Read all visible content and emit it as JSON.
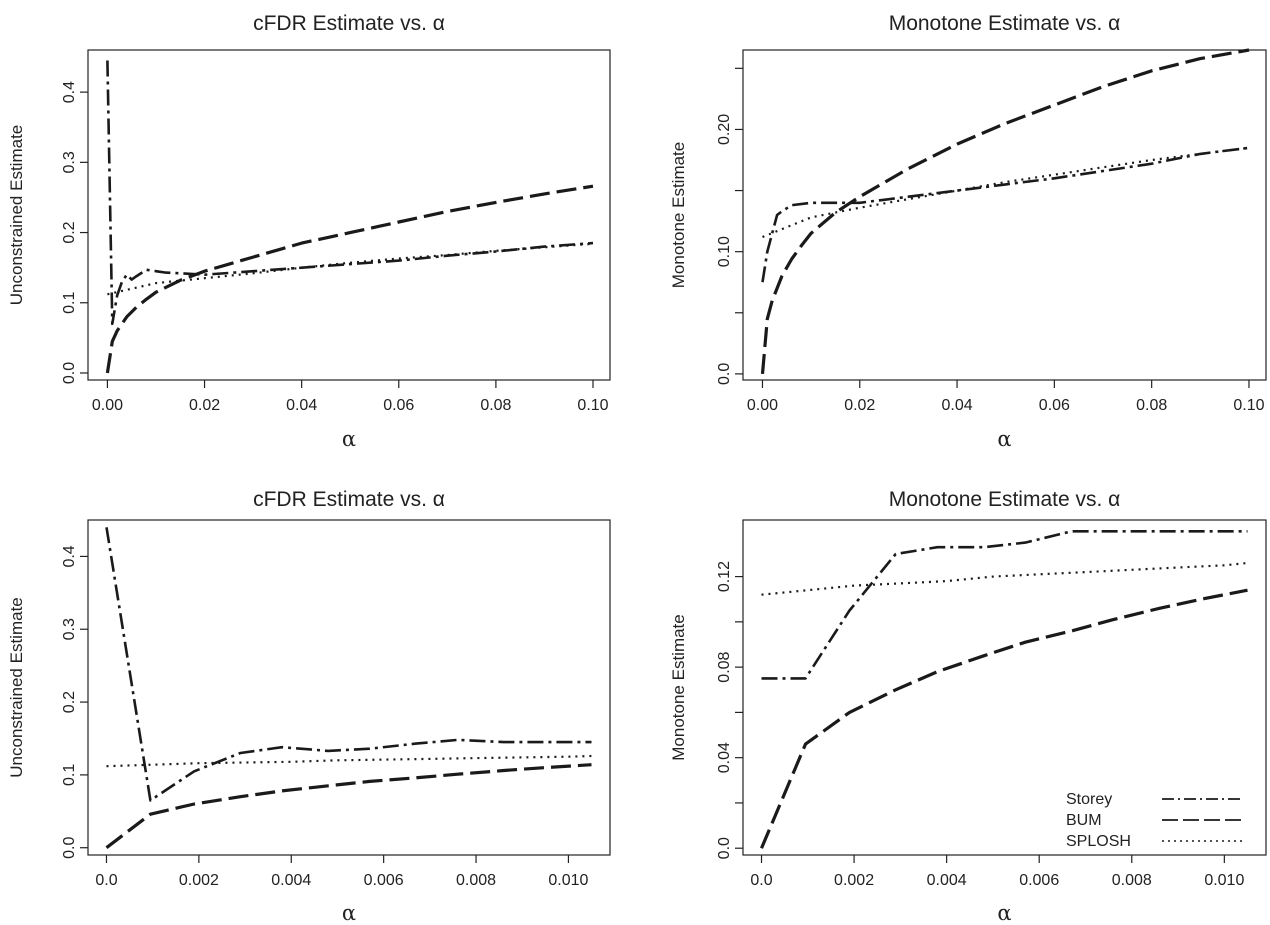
{
  "chart_data": [
    {
      "type": "line",
      "title": "cFDR Estimate vs. α",
      "xlabel": "α",
      "ylabel": "Unconstrained Estimate",
      "xlim": [
        -0.004,
        0.1035
      ],
      "ylim": [
        -0.01,
        0.46
      ],
      "xticks": [
        0.0,
        0.02,
        0.04,
        0.06,
        0.08,
        0.1
      ],
      "xtick_labels": [
        "0.00",
        "0.02",
        "0.04",
        "0.06",
        "0.08",
        "0.10"
      ],
      "yticks": [
        0.0,
        0.1,
        0.2,
        0.3,
        0.4
      ],
      "ytick_labels": [
        "0.0",
        "0.1",
        "0.2",
        "0.3",
        "0.4"
      ],
      "grid": false,
      "series": [
        {
          "name": "Storey",
          "style": "dashdot",
          "x": [
            0.0,
            0.001,
            0.002,
            0.003,
            0.004,
            0.005,
            0.006,
            0.008,
            0.01,
            0.012,
            0.015,
            0.02,
            0.03,
            0.04,
            0.05,
            0.06,
            0.07,
            0.08,
            0.09,
            0.1
          ],
          "y": [
            0.445,
            0.07,
            0.11,
            0.13,
            0.14,
            0.133,
            0.138,
            0.147,
            0.145,
            0.143,
            0.142,
            0.14,
            0.145,
            0.15,
            0.155,
            0.16,
            0.167,
            0.173,
            0.18,
            0.185
          ]
        },
        {
          "name": "BUM",
          "style": "longdash",
          "x": [
            0.0,
            0.001,
            0.002,
            0.004,
            0.006,
            0.008,
            0.01,
            0.015,
            0.02,
            0.03,
            0.04,
            0.05,
            0.06,
            0.07,
            0.08,
            0.09,
            0.1
          ],
          "y": [
            0.0,
            0.045,
            0.06,
            0.08,
            0.094,
            0.105,
            0.115,
            0.132,
            0.145,
            0.165,
            0.185,
            0.2,
            0.215,
            0.23,
            0.243,
            0.255,
            0.266
          ]
        },
        {
          "name": "SPLOSH",
          "style": "dotted",
          "x": [
            0.0,
            0.005,
            0.01,
            0.02,
            0.03,
            0.04,
            0.05,
            0.06,
            0.07,
            0.08,
            0.09,
            0.1
          ],
          "y": [
            0.112,
            0.12,
            0.128,
            0.135,
            0.142,
            0.15,
            0.157,
            0.163,
            0.168,
            0.174,
            0.179,
            0.184
          ]
        }
      ]
    },
    {
      "type": "line",
      "title": "Monotone Estimate vs. α",
      "xlabel": "α",
      "ylabel": "Monotone Estimate",
      "xlim": [
        -0.004,
        0.1035
      ],
      "ylim": [
        -0.005,
        0.265
      ],
      "xticks": [
        0.0,
        0.02,
        0.04,
        0.06,
        0.08,
        0.1
      ],
      "xtick_labels": [
        "0.00",
        "0.02",
        "0.04",
        "0.06",
        "0.08",
        "0.10"
      ],
      "yticks": [
        0.0,
        0.05,
        0.1,
        0.15,
        0.2,
        0.25
      ],
      "ytick_labels": [
        "0.0",
        "",
        "0.10",
        "",
        "0.20",
        ""
      ],
      "grid": false,
      "series": [
        {
          "name": "Storey",
          "style": "dashdot",
          "x": [
            0.0,
            0.001,
            0.003,
            0.004,
            0.006,
            0.01,
            0.02,
            0.03,
            0.04,
            0.05,
            0.06,
            0.07,
            0.08,
            0.09,
            0.1
          ],
          "y": [
            0.075,
            0.1,
            0.13,
            0.133,
            0.138,
            0.14,
            0.14,
            0.145,
            0.15,
            0.155,
            0.16,
            0.166,
            0.172,
            0.18,
            0.185
          ]
        },
        {
          "name": "BUM",
          "style": "longdash",
          "x": [
            0.0,
            0.001,
            0.002,
            0.004,
            0.006,
            0.008,
            0.01,
            0.015,
            0.02,
            0.03,
            0.04,
            0.05,
            0.06,
            0.07,
            0.08,
            0.09,
            0.1
          ],
          "y": [
            0.0,
            0.045,
            0.06,
            0.08,
            0.094,
            0.105,
            0.115,
            0.132,
            0.145,
            0.168,
            0.188,
            0.205,
            0.22,
            0.235,
            0.248,
            0.258,
            0.265
          ]
        },
        {
          "name": "SPLOSH",
          "style": "dotted",
          "x": [
            0.0,
            0.005,
            0.01,
            0.02,
            0.03,
            0.04,
            0.05,
            0.06,
            0.07,
            0.08,
            0.09,
            0.1
          ],
          "y": [
            0.112,
            0.12,
            0.128,
            0.136,
            0.143,
            0.15,
            0.157,
            0.163,
            0.169,
            0.175,
            0.18,
            0.185
          ]
        }
      ]
    },
    {
      "type": "line",
      "title": "cFDR Estimate vs. α",
      "xlabel": "α",
      "ylabel": "Unconstrained Estimate",
      "xlim": [
        -0.0004,
        0.0109
      ],
      "ylim": [
        -0.01,
        0.45
      ],
      "xticks": [
        0.0,
        0.002,
        0.004,
        0.006,
        0.008,
        0.01
      ],
      "xtick_labels": [
        "0.0",
        "0.002",
        "0.004",
        "0.006",
        "0.008",
        "0.010"
      ],
      "yticks": [
        0.0,
        0.1,
        0.2,
        0.3,
        0.4
      ],
      "ytick_labels": [
        "0.0",
        "0.1",
        "0.2",
        "0.3",
        "0.4"
      ],
      "grid": false,
      "series": [
        {
          "name": "Storey",
          "style": "dashdot",
          "x": [
            0.0,
            0.00095,
            0.0019,
            0.0029,
            0.0038,
            0.0048,
            0.0057,
            0.0067,
            0.0076,
            0.0086,
            0.0095,
            0.0105
          ],
          "y": [
            0.44,
            0.065,
            0.105,
            0.13,
            0.138,
            0.133,
            0.136,
            0.143,
            0.148,
            0.145,
            0.145,
            0.145
          ]
        },
        {
          "name": "BUM",
          "style": "longdash",
          "x": [
            0.0,
            0.00095,
            0.0019,
            0.0029,
            0.0038,
            0.0048,
            0.0057,
            0.0067,
            0.0076,
            0.0086,
            0.0095,
            0.0105
          ],
          "y": [
            0.0,
            0.046,
            0.06,
            0.07,
            0.078,
            0.085,
            0.091,
            0.096,
            0.101,
            0.106,
            0.11,
            0.114
          ]
        },
        {
          "name": "SPLOSH",
          "style": "dotted",
          "x": [
            0.0,
            0.001,
            0.002,
            0.003,
            0.004,
            0.005,
            0.006,
            0.007,
            0.008,
            0.009,
            0.01,
            0.0105
          ],
          "y": [
            0.112,
            0.114,
            0.116,
            0.117,
            0.118,
            0.12,
            0.121,
            0.122,
            0.123,
            0.124,
            0.125,
            0.126
          ]
        }
      ]
    },
    {
      "type": "line",
      "title": "Monotone Estimate vs. α",
      "xlabel": "α",
      "ylabel": "Monotone Estimate",
      "xlim": [
        -0.0004,
        0.0109
      ],
      "ylim": [
        -0.003,
        0.145
      ],
      "xticks": [
        0.0,
        0.002,
        0.004,
        0.006,
        0.008,
        0.01
      ],
      "xtick_labels": [
        "0.0",
        "0.002",
        "0.004",
        "0.006",
        "0.008",
        "0.010"
      ],
      "yticks": [
        0.0,
        0.02,
        0.04,
        0.06,
        0.08,
        0.1,
        0.12
      ],
      "ytick_labels": [
        "0.0",
        "",
        "0.04",
        "",
        "0.08",
        "",
        "0.12"
      ],
      "grid": false,
      "legend": {
        "position": "bottom-right",
        "entries": [
          {
            "label": "Storey",
            "style": "dashdot"
          },
          {
            "label": "BUM",
            "style": "longdash"
          },
          {
            "label": "SPLOSH",
            "style": "dotted"
          }
        ]
      },
      "series": [
        {
          "name": "Storey",
          "style": "dashdot",
          "x": [
            0.0,
            0.00095,
            0.0019,
            0.0029,
            0.0038,
            0.0048,
            0.0057,
            0.0067,
            0.0076,
            0.0086,
            0.0095,
            0.0105
          ],
          "y": [
            0.075,
            0.075,
            0.105,
            0.13,
            0.133,
            0.133,
            0.135,
            0.14,
            0.14,
            0.14,
            0.14,
            0.14
          ]
        },
        {
          "name": "BUM",
          "style": "longdash",
          "x": [
            0.0,
            0.00095,
            0.0019,
            0.0029,
            0.0038,
            0.0048,
            0.0057,
            0.0067,
            0.0076,
            0.0086,
            0.0095,
            0.0105
          ],
          "y": [
            0.0,
            0.046,
            0.06,
            0.07,
            0.078,
            0.085,
            0.091,
            0.096,
            0.101,
            0.106,
            0.11,
            0.114
          ]
        },
        {
          "name": "SPLOSH",
          "style": "dotted",
          "x": [
            0.0,
            0.001,
            0.002,
            0.003,
            0.004,
            0.005,
            0.006,
            0.007,
            0.008,
            0.009,
            0.01,
            0.0105
          ],
          "y": [
            0.112,
            0.114,
            0.116,
            0.117,
            0.118,
            0.12,
            0.121,
            0.122,
            0.123,
            0.124,
            0.125,
            0.126
          ]
        }
      ]
    }
  ]
}
